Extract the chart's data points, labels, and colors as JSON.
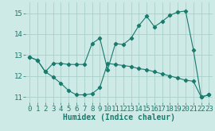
{
  "line1_x": [
    0,
    1,
    2,
    3,
    4,
    5,
    6,
    7,
    8,
    9,
    10,
    11,
    12,
    13,
    14,
    15,
    16,
    17,
    18,
    19,
    20,
    21,
    22,
    23
  ],
  "line1_y": [
    12.9,
    12.75,
    12.2,
    12.6,
    12.6,
    12.55,
    12.55,
    12.55,
    13.55,
    13.8,
    12.3,
    13.55,
    13.5,
    13.8,
    14.4,
    14.85,
    14.35,
    14.6,
    14.9,
    15.05,
    15.1,
    13.25,
    11.0,
    11.1
  ],
  "line2_x": [
    0,
    1,
    2,
    3,
    4,
    5,
    6,
    7,
    8,
    9,
    10,
    11,
    12,
    13,
    14,
    15,
    16,
    17,
    18,
    19,
    20,
    21,
    22,
    23
  ],
  "line2_y": [
    12.9,
    12.75,
    12.2,
    11.95,
    11.65,
    11.3,
    11.1,
    11.1,
    11.15,
    11.45,
    12.6,
    12.55,
    12.5,
    12.45,
    12.35,
    12.3,
    12.2,
    12.1,
    12.0,
    11.9,
    11.8,
    11.75,
    11.0,
    11.1
  ],
  "line_color": "#1a7a6e",
  "marker": "D",
  "marker_size": 2.2,
  "linewidth": 0.8,
  "bg_color": "#ceeae6",
  "grid_color": "#aacfca",
  "xlabel": "Humidex (Indice chaleur)",
  "xlim": [
    -0.5,
    23.5
  ],
  "ylim": [
    10.75,
    15.5
  ],
  "yticks": [
    11,
    12,
    13,
    14,
    15
  ],
  "xticks": [
    0,
    1,
    2,
    3,
    4,
    5,
    6,
    7,
    8,
    9,
    10,
    11,
    12,
    13,
    14,
    15,
    16,
    17,
    18,
    19,
    20,
    21,
    22,
    23
  ],
  "label_fontsize": 7,
  "tick_fontsize": 6.5,
  "tick_color": "#1a7a6e"
}
